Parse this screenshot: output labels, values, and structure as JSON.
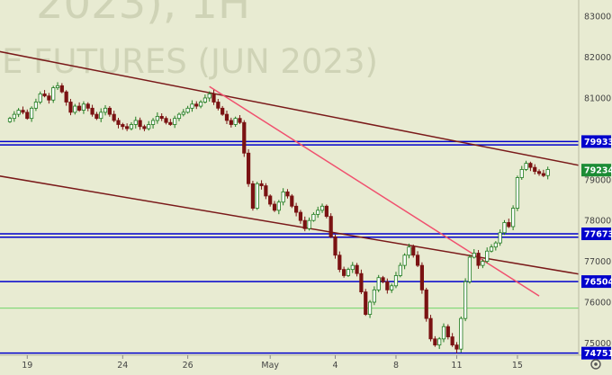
{
  "watermark": {
    "line1": "2023), 1H",
    "line2": "E FUTURES (JUN 2023)"
  },
  "colors": {
    "background": "#e8ebd2",
    "candle_up": "#1d7a1d",
    "candle_down": "#7a1212",
    "level_line": "#0000cc",
    "trend_line": "#7a1a1a",
    "pink_line": "#f0506e",
    "green_line": "#44cc44",
    "label_blue": "#0000cc",
    "label_green": "#1c8c35"
  },
  "chart_data": {
    "type": "candlestick",
    "ylim": [
      74700,
      83400
    ],
    "y_ticks": [
      75000,
      76000,
      77000,
      78000,
      79000,
      80000,
      81000,
      82000,
      83000
    ],
    "x_labels": [
      {
        "label": "19",
        "bar": 4
      },
      {
        "label": "24",
        "bar": 26
      },
      {
        "label": "26",
        "bar": 41
      },
      {
        "label": "May",
        "bar": 60
      },
      {
        "label": "4",
        "bar": 75
      },
      {
        "label": "8",
        "bar": 89
      },
      {
        "label": "11",
        "bar": 103
      },
      {
        "label": "15",
        "bar": 117
      }
    ],
    "closes": [
      80500,
      80600,
      80700,
      80650,
      80500,
      80750,
      80900,
      81100,
      81050,
      80950,
      81250,
      81300,
      81150,
      80900,
      80650,
      80800,
      80700,
      80850,
      80750,
      80600,
      80500,
      80650,
      80750,
      80600,
      80450,
      80350,
      80300,
      80250,
      80350,
      80450,
      80300,
      80250,
      80350,
      80450,
      80550,
      80500,
      80400,
      80350,
      80500,
      80600,
      80650,
      80750,
      80850,
      80800,
      80900,
      81000,
      81100,
      80900,
      80750,
      80600,
      80450,
      80350,
      80500,
      80400,
      79650,
      78900,
      78300,
      78900,
      78850,
      78600,
      78400,
      78250,
      78450,
      78700,
      78600,
      78350,
      78200,
      78000,
      77800,
      78000,
      78150,
      78250,
      78350,
      78100,
      77600,
      77150,
      76800,
      76650,
      76800,
      76900,
      76700,
      76250,
      75700,
      76000,
      76300,
      76600,
      76500,
      76300,
      76400,
      76650,
      76900,
      77150,
      77350,
      77150,
      76900,
      76300,
      75600,
      75100,
      74950,
      75100,
      75400,
      75150,
      74950,
      74850,
      75600,
      76500,
      77100,
      77200,
      76900,
      77000,
      77250,
      77350,
      77450,
      77700,
      77950,
      77850,
      78300,
      79050,
      79250,
      79400,
      79300,
      79200,
      79150,
      79100,
      79250
    ],
    "levels": [
      {
        "value": 79933,
        "label": "79933",
        "line_color": "#0000cc",
        "label_color": "#0000cc"
      },
      {
        "value": 77673,
        "label": "77673",
        "line_color": "#0000cc",
        "label_color": "#0000cc"
      },
      {
        "value": 76504,
        "label": "76504",
        "line_color": "#0000cc",
        "label_color": "#0000cc"
      },
      {
        "value": 74751,
        "label": "74751",
        "line_color": "#0000cc",
        "label_color": "#0000cc"
      },
      {
        "value": 79850,
        "label": "",
        "line_color": "#0000cc",
        "label_color": ""
      },
      {
        "value": 77590,
        "label": "",
        "line_color": "#0000cc",
        "label_color": ""
      },
      {
        "value": 75850,
        "label": "",
        "line_color": "#44cc44",
        "label_color": ""
      },
      {
        "value": 79234,
        "label": "79234",
        "line_color": "#44cc44",
        "label_color": "#1c8c35",
        "label_only": true
      }
    ],
    "trendlines": [
      {
        "from": [
          -3,
          82150
        ],
        "to": [
          136,
          79250
        ],
        "color": "#7a1a1a"
      },
      {
        "from": [
          -3,
          79100
        ],
        "to": [
          136,
          76600
        ],
        "color": "#7a1a1a"
      },
      {
        "from": [
          46,
          81280
        ],
        "to": [
          122,
          76150
        ],
        "color": "#f0506e"
      }
    ]
  }
}
